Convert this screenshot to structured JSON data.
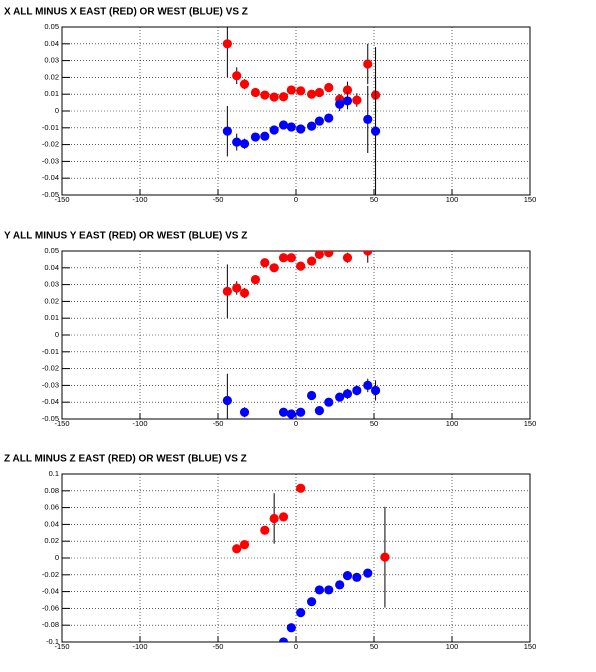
{
  "chart_data": [
    {
      "type": "scatter",
      "title": "X ALL MINUS X EAST (RED) OR WEST (BLUE) VS Z",
      "xlim": [
        -150,
        150
      ],
      "ylim": [
        -0.05,
        0.05
      ],
      "xticks": [
        -150,
        -100,
        -50,
        0,
        50,
        100,
        150
      ],
      "yticks": [
        -0.05,
        -0.04,
        -0.03,
        -0.02,
        -0.01,
        0,
        0.01,
        0.02,
        0.03,
        0.04,
        0.05
      ],
      "grid": true,
      "series": [
        {
          "color": "#ff0000",
          "x": [
            -44,
            -38,
            -33,
            -26,
            -20,
            -14,
            -8,
            -3,
            3,
            10,
            15,
            21,
            28,
            33,
            39,
            46,
            51
          ],
          "values": [
            0.04,
            0.021,
            0.016,
            0.011,
            0.0095,
            0.0083,
            0.0085,
            0.0125,
            0.012,
            0.01,
            0.011,
            0.014,
            0.007,
            0.0125,
            0.0065,
            0.028,
            0.0095
          ],
          "errors": [
            0.02,
            0.005,
            0.003,
            0.002,
            0.002,
            0.002,
            0.002,
            0.002,
            0.002,
            0.002,
            0.002,
            0.002,
            0.003,
            0.005,
            0.004,
            0.012,
            0.01
          ]
        },
        {
          "color": "#0000ff",
          "x": [
            -44,
            -38,
            -33,
            -26,
            -20,
            -14,
            -8,
            -3,
            3,
            10,
            15,
            21,
            28,
            33,
            46,
            51
          ],
          "values": [
            -0.012,
            -0.0185,
            -0.0195,
            -0.0155,
            -0.015,
            -0.0113,
            -0.0083,
            -0.0095,
            -0.0107,
            -0.009,
            -0.006,
            -0.0042,
            0.004,
            0.006,
            -0.005,
            -0.012
          ],
          "errors": [
            0.015,
            0.005,
            0.003,
            0.002,
            0.002,
            0.002,
            0.002,
            0.002,
            0.002,
            0.002,
            0.002,
            0.002,
            0.004,
            0.005,
            0.02,
            0.05
          ]
        }
      ]
    },
    {
      "type": "scatter",
      "title": "Y ALL MINUS Y EAST (RED) OR WEST (BLUE) VS Z",
      "xlim": [
        -150,
        150
      ],
      "ylim": [
        -0.05,
        0.05
      ],
      "xticks": [
        -150,
        -100,
        -50,
        0,
        50,
        100,
        150
      ],
      "yticks": [
        -0.05,
        -0.04,
        -0.03,
        -0.02,
        -0.01,
        0,
        0.01,
        0.02,
        0.03,
        0.04,
        0.05
      ],
      "grid": true,
      "series": [
        {
          "color": "#ff0000",
          "x": [
            -44,
            -38,
            -33,
            -26,
            -20,
            -14,
            -8,
            -3,
            3,
            10,
            15,
            21,
            33,
            46
          ],
          "values": [
            0.026,
            0.028,
            0.025,
            0.033,
            0.043,
            0.04,
            0.046,
            0.046,
            0.041,
            0.044,
            0.048,
            0.049,
            0.046,
            0.05
          ],
          "errors": [
            0.016,
            0.004,
            0.003,
            0.002,
            0.002,
            0.002,
            0.002,
            0.002,
            0.002,
            0.002,
            0.002,
            0.002,
            0.003,
            0.007
          ]
        },
        {
          "color": "#0000ff",
          "x": [
            -44,
            -33,
            -8,
            -3,
            3,
            10,
            15,
            21,
            28,
            33,
            39,
            46,
            51
          ],
          "values": [
            -0.039,
            -0.046,
            -0.046,
            -0.047,
            -0.046,
            -0.036,
            -0.045,
            -0.04,
            -0.037,
            -0.035,
            -0.033,
            -0.03,
            -0.033
          ],
          "errors": [
            0.016,
            0.003,
            0.002,
            0.002,
            0.002,
            0.002,
            0.002,
            0.002,
            0.002,
            0.003,
            0.003,
            0.004,
            0.006
          ]
        }
      ]
    },
    {
      "type": "scatter",
      "title": "Z ALL MINUS Z EAST (RED) OR WEST (BLUE) VS Z",
      "xlim": [
        -150,
        150
      ],
      "ylim": [
        -0.1,
        0.1
      ],
      "xticks": [
        -150,
        -100,
        -50,
        0,
        50,
        100,
        150
      ],
      "yticks": [
        -0.1,
        -0.08,
        -0.06,
        -0.04,
        -0.02,
        0,
        0.02,
        0.04,
        0.06,
        0.08,
        0.1
      ],
      "grid": true,
      "series": [
        {
          "color": "#ff0000",
          "x": [
            -38,
            -33,
            -20,
            -14,
            -8,
            3,
            57
          ],
          "values": [
            0.011,
            0.016,
            0.033,
            0.047,
            0.049,
            0.083,
            0.001
          ],
          "errors": [
            0.004,
            0.004,
            0.005,
            0.03,
            0.004,
            0.004,
            0.06
          ]
        },
        {
          "color": "#0000ff",
          "x": [
            -8,
            -3,
            3,
            10,
            15,
            21,
            28,
            33,
            39,
            46
          ],
          "values": [
            -0.1,
            -0.083,
            -0.065,
            -0.052,
            -0.038,
            -0.038,
            -0.032,
            -0.021,
            -0.023,
            -0.018
          ],
          "errors": [
            0.003,
            0.003,
            0.003,
            0.003,
            0.003,
            0.003,
            0.003,
            0.003,
            0.003,
            0.003
          ]
        }
      ]
    }
  ]
}
